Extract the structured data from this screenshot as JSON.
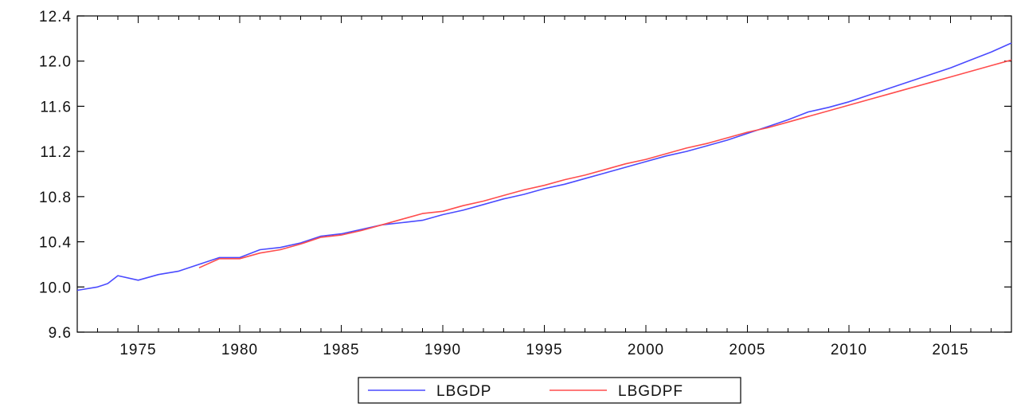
{
  "chart_data": {
    "type": "line",
    "title": "",
    "xlabel": "",
    "ylabel": "",
    "xlim": [
      1972,
      2018
    ],
    "ylim": [
      9.6,
      12.4
    ],
    "x_ticks": [
      1975,
      1980,
      1985,
      1990,
      1995,
      2000,
      2005,
      2010,
      2015
    ],
    "x_tick_labels": [
      "1975",
      "1980",
      "1985",
      "1990",
      "1995",
      "2000",
      "2005",
      "2010",
      "2015"
    ],
    "y_ticks": [
      9.6,
      10.0,
      10.4,
      10.8,
      11.2,
      11.6,
      12.0,
      12.4
    ],
    "y_tick_labels": [
      "9.6",
      "10.0",
      "10.4",
      "10.8",
      "11.2",
      "11.6",
      "12.0",
      "12.4"
    ],
    "grid": false,
    "legend_position": "bottom-center",
    "series": [
      {
        "name": "LBGDP",
        "color": "#4a4aff",
        "x": [
          1972,
          1973,
          1973.5,
          1974,
          1975,
          1976,
          1977,
          1978,
          1979,
          1980,
          1981,
          1982,
          1983,
          1984,
          1985,
          1986,
          1987,
          1988,
          1989,
          1990,
          1991,
          1992,
          1993,
          1994,
          1995,
          1996,
          1997,
          1998,
          1999,
          2000,
          2001,
          2002,
          2003,
          2004,
          2005,
          2006,
          2007,
          2008,
          2009,
          2010,
          2011,
          2012,
          2013,
          2014,
          2015,
          2016,
          2017,
          2018
        ],
        "y": [
          9.97,
          10.0,
          10.03,
          10.1,
          10.06,
          10.11,
          10.14,
          10.2,
          10.26,
          10.26,
          10.33,
          10.35,
          10.39,
          10.45,
          10.47,
          10.51,
          10.55,
          10.57,
          10.59,
          10.64,
          10.68,
          10.73,
          10.78,
          10.82,
          10.87,
          10.91,
          10.96,
          11.01,
          11.06,
          11.11,
          11.16,
          11.2,
          11.25,
          11.3,
          11.36,
          11.42,
          11.48,
          11.55,
          11.59,
          11.64,
          11.7,
          11.76,
          11.82,
          11.88,
          11.94,
          12.01,
          12.08,
          12.16
        ]
      },
      {
        "name": "LBGDPF",
        "color": "#ff4d4d",
        "x": [
          1978,
          1979,
          1980,
          1981,
          1982,
          1983,
          1984,
          1985,
          1986,
          1987,
          1988,
          1989,
          1990,
          1991,
          1992,
          1993,
          1994,
          1995,
          1996,
          1997,
          1998,
          1999,
          2000,
          2001,
          2002,
          2003,
          2004,
          2005,
          2006,
          2007,
          2008,
          2009,
          2010,
          2011,
          2012,
          2013,
          2014,
          2015,
          2016,
          2017,
          2018
        ],
        "y": [
          10.17,
          10.25,
          10.25,
          10.3,
          10.33,
          10.38,
          10.44,
          10.46,
          10.5,
          10.55,
          10.6,
          10.65,
          10.67,
          10.72,
          10.76,
          10.81,
          10.86,
          10.9,
          10.95,
          10.99,
          11.04,
          11.09,
          11.13,
          11.18,
          11.23,
          11.27,
          11.32,
          11.37,
          11.41,
          11.46,
          11.51,
          11.56,
          11.61,
          11.66,
          11.71,
          11.76,
          11.81,
          11.86,
          11.91,
          11.96,
          12.01
        ]
      }
    ]
  }
}
